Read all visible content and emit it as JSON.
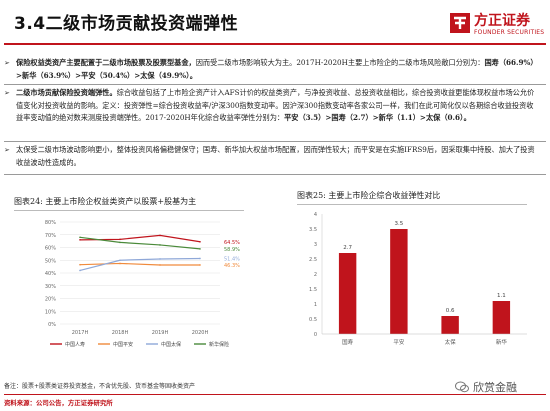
{
  "title": "3.4二级市场贡献投资端弹性",
  "logo": {
    "cn": "方正证券",
    "en": "FOUNDER SECURITIES"
  },
  "bullets": [
    {
      "bold": "保险权益类资产主要配置于二级市场股票及股票型基金，",
      "text": "因而受二级市场影响较大为主。2017H-2020H主要上市险企的二级市场风险敞口分别为：",
      "tail_bold": "国寿（66.9%）>新华（63.9%）>平安（50.4%）>太保（49.9%）。"
    },
    {
      "bold": "二级市场贡献保险投资端弹性。",
      "text": "综合收益包括了上市险企资产计入AFS计价的权益类资产，与净投资收益、总投资收益相比，综合投资收益更能体现权益市场公允价值变化对投资收益的影响。定义：投资弹性=综合投资收益率/沪深300指数变动率。因沪深300指数变动率各家公司一样，我们在此可简化仅以各期综合收益投资收益率变动值的绝对数来测度投资端弹性。2017-2020H年化综合收益率弹性分别为：",
      "tail_bold": "平安（3.5）>国寿（2.7）>新华（1.1）>太保（0.6）。"
    },
    {
      "bold": "",
      "text": "太保受二级市场波动影响更小，整体投资风格偏稳健保守；国寿、新华加大权益市场配置，因而弹性较大；而平安是在实施IFRS9后，因采取集中持股、加大了投资收益波动性造成的。",
      "tail_bold": ""
    }
  ],
  "chart1": {
    "title": "图表24:   主要上市险企权益类资产以股票+股基为主",
    "chart_data": {
      "type": "line",
      "categories": [
        "2017H",
        "2018H",
        "2019H",
        "2020H"
      ],
      "series": [
        {
          "name": "中国人寿",
          "color": "#c0141c",
          "values": [
            66.0,
            66.4,
            69.5,
            64.5
          ]
        },
        {
          "name": "中国平安",
          "color": "#f08a3c",
          "values": [
            46.5,
            47.5,
            46.3,
            46.3
          ]
        },
        {
          "name": "中国太保",
          "color": "#8fa8d8",
          "values": [
            42.0,
            50.0,
            51.0,
            51.4
          ]
        },
        {
          "name": "新华保险",
          "color": "#4a8a3a",
          "values": [
            68.0,
            64.0,
            62.0,
            58.9
          ]
        }
      ],
      "end_labels": [
        "64.5%",
        "58.9%",
        "51.4%",
        "46.3%"
      ],
      "y_ticks": [
        "0%",
        "10%",
        "20%",
        "30%",
        "40%",
        "50%",
        "60%",
        "70%",
        "80%"
      ],
      "ylim": [
        0,
        80
      ],
      "grid": true,
      "legend": "bottom"
    }
  },
  "chart2": {
    "title": "图表25:   主要上市险企综合收益弹性对比",
    "chart_data": {
      "type": "bar",
      "categories": [
        "国寿",
        "平安",
        "太保",
        "新华"
      ],
      "values": [
        2.7,
        3.5,
        0.6,
        1.1
      ],
      "value_labels": [
        "2.7",
        "3.5",
        "0.6",
        "1.1"
      ],
      "y_ticks": [
        "0",
        "0.5",
        "1",
        "1.5",
        "2",
        "2.5",
        "3",
        "3.5",
        "4"
      ],
      "ylim": [
        0,
        4
      ],
      "color": "#c0141c"
    }
  },
  "note": "备注：股票+股票类证券投资基金，不含优先股、货币基金等固收类资产",
  "source": "资料来源：公司公告，方正证券研究所",
  "wechat": "欣赏金融",
  "colors": {
    "accent": "#c0141c"
  }
}
